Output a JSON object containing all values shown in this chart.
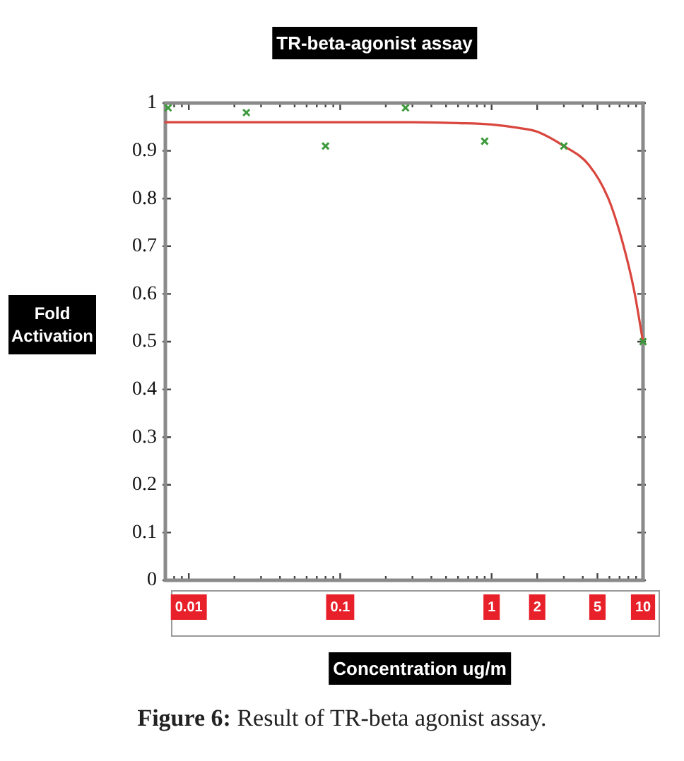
{
  "chart_data": {
    "type": "scatter",
    "title": "TR-beta-agonist assay",
    "xlabel": "Concentration ug/m",
    "ylabel": "Fold Activation",
    "annotations": [
      "Figure 6: Result of TR-beta agonist assay."
    ],
    "log": "x",
    "xlim": [
      0.007,
      10
    ],
    "xticks": [
      {
        "value": 0.008,
        "label": null
      },
      {
        "value": 0.009,
        "label": null
      },
      0.01,
      {
        "value": 0.02,
        "label": null
      },
      {
        "value": 0.03,
        "label": null
      },
      {
        "value": 0.04,
        "label": null
      },
      {
        "value": 0.05,
        "label": null
      },
      {
        "value": 0.06,
        "label": null
      },
      {
        "value": 0.07,
        "label": null
      },
      {
        "value": 0.08,
        "label": null
      },
      {
        "value": 0.09,
        "label": null
      },
      0.1,
      {
        "value": 0.2,
        "label": null
      },
      {
        "value": 0.3,
        "label": null
      },
      {
        "value": 0.4,
        "label": null
      },
      {
        "value": 0.5,
        "label": null
      },
      {
        "value": 0.6,
        "label": null
      },
      {
        "value": 0.7,
        "label": null
      },
      {
        "value": 0.8,
        "label": null
      },
      {
        "value": 0.9,
        "label": null
      },
      1,
      2,
      {
        "value": 3,
        "label": null
      },
      {
        "value": 4,
        "label": null
      },
      5,
      {
        "value": 6,
        "label": null
      },
      {
        "value": 7,
        "label": null
      },
      {
        "value": 8,
        "label": null
      },
      {
        "value": 9,
        "label": null
      },
      10
    ],
    "ylim": [
      0,
      1
    ],
    "yticks": [
      0,
      0.1,
      0.2,
      0.3,
      0.4,
      0.5,
      0.6,
      0.7,
      0.8,
      0.9,
      1
    ],
    "series": [
      {
        "type": "scatter",
        "color": "#3c9a3c",
        "marker": "cross",
        "x": [
          0.0073,
          0.024,
          0.08,
          0.27,
          0.9,
          3,
          10
        ],
        "values": [
          0.99,
          0.98,
          0.91,
          0.99,
          0.92,
          0.91,
          0.5
        ]
      },
      {
        "type": "line",
        "color": "#d9463e",
        "marker": "none",
        "line_style": "solid",
        "x": [
          0.007,
          0.03,
          0.1,
          0.3,
          0.6,
          1,
          1.5,
          2,
          3,
          4.4,
          5.9,
          7.3,
          8.7,
          10
        ],
        "values": [
          0.96,
          0.96,
          0.96,
          0.96,
          0.958,
          0.955,
          0.948,
          0.94,
          0.91,
          0.87,
          0.8,
          0.71,
          0.61,
          0.5
        ]
      }
    ]
  }
}
